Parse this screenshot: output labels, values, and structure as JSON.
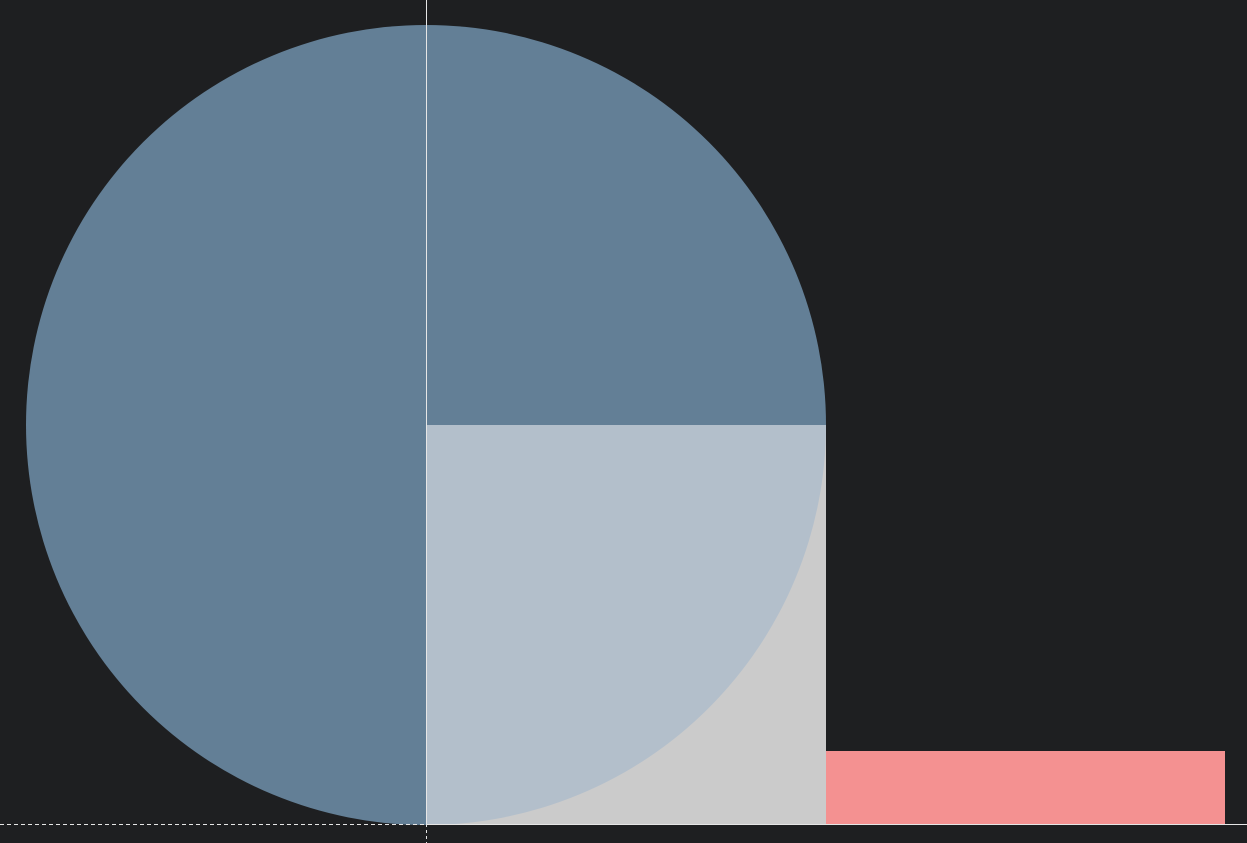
{
  "canvas": {
    "background": "#1e1f21",
    "colors": {
      "circle_main": "#637f96",
      "circle_quarter": "#b3bfcb",
      "square": "#cbcbcb",
      "bar": "#f49191",
      "axis_line": "#e6e6e6"
    }
  }
}
